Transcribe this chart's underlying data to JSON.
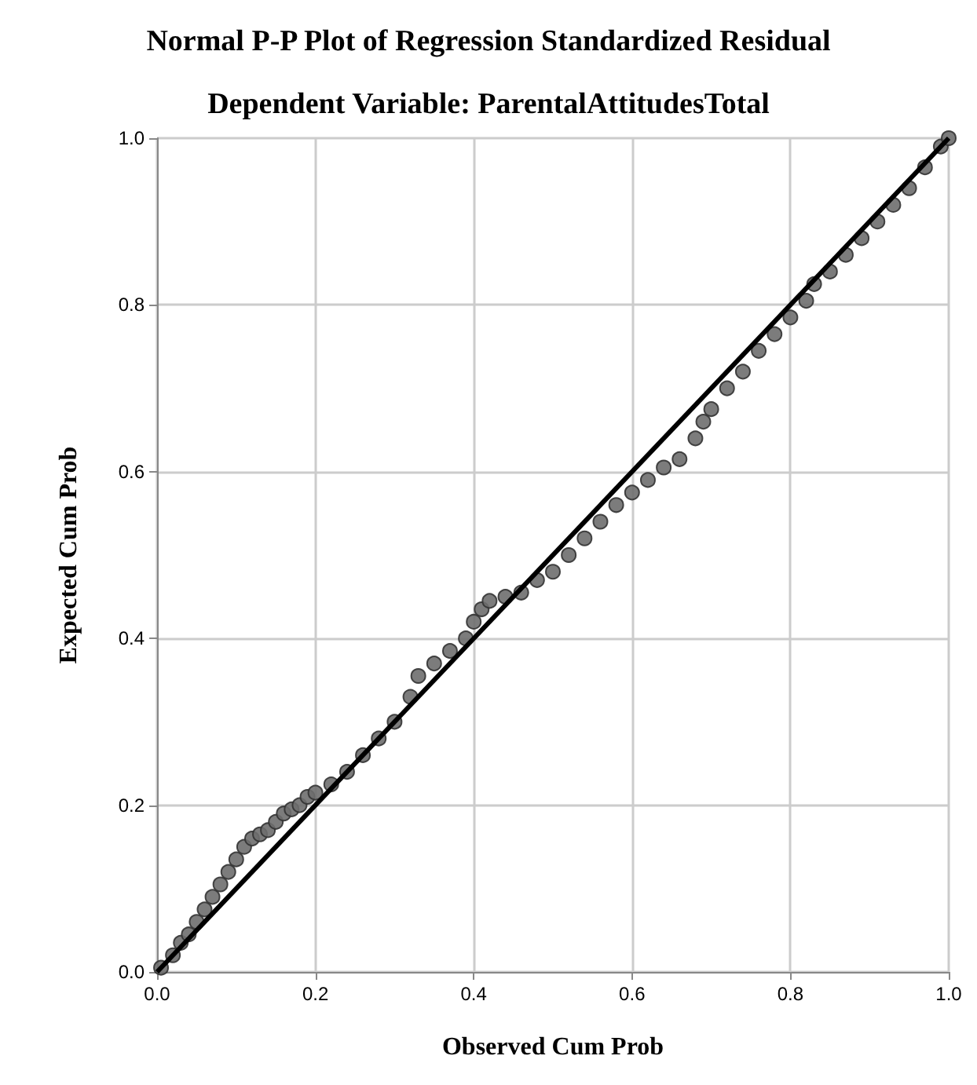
{
  "chart_data": {
    "type": "scatter",
    "title": "Normal P-P Plot of Regression Standardized Residual",
    "subtitle": "Dependent Variable: ParentalAttitudesTotal",
    "xlabel": "Observed Cum Prob",
    "ylabel": "Expected Cum Prob",
    "xlim": [
      0,
      1
    ],
    "ylim": [
      0,
      1
    ],
    "xticks": [
      {
        "value": 0,
        "label": "0.0"
      },
      {
        "value": 0.2,
        "label": "0.2"
      },
      {
        "value": 0.4,
        "label": "0.4"
      },
      {
        "value": 0.6,
        "label": "0.6"
      },
      {
        "value": 0.8,
        "label": "0.8"
      },
      {
        "value": 1,
        "label": "1.0"
      }
    ],
    "yticks": [
      {
        "value": 0,
        "label": "0.0"
      },
      {
        "value": 0.2,
        "label": "0.2"
      },
      {
        "value": 0.4,
        "label": "0.4"
      },
      {
        "value": 0.6,
        "label": "0.6"
      },
      {
        "value": 0.8,
        "label": "0.8"
      },
      {
        "value": 1,
        "label": "1.0"
      }
    ],
    "grid": true,
    "series": [
      {
        "marker": "circle",
        "color": "#6e6e6e",
        "x": [
          0.005,
          0.02,
          0.03,
          0.04,
          0.05,
          0.06,
          0.07,
          0.08,
          0.09,
          0.1,
          0.11,
          0.12,
          0.13,
          0.14,
          0.15,
          0.16,
          0.17,
          0.18,
          0.19,
          0.2,
          0.22,
          0.24,
          0.26,
          0.28,
          0.3,
          0.32,
          0.33,
          0.35,
          0.37,
          0.39,
          0.4,
          0.41,
          0.42,
          0.44,
          0.46,
          0.48,
          0.5,
          0.52,
          0.54,
          0.56,
          0.58,
          0.6,
          0.62,
          0.64,
          0.66,
          0.68,
          0.69,
          0.7,
          0.72,
          0.74,
          0.76,
          0.78,
          0.8,
          0.82,
          0.83,
          0.85,
          0.87,
          0.89,
          0.91,
          0.93,
          0.95,
          0.97,
          0.99,
          1.0
        ],
        "values": [
          0.005,
          0.02,
          0.035,
          0.045,
          0.06,
          0.075,
          0.09,
          0.105,
          0.12,
          0.135,
          0.15,
          0.16,
          0.165,
          0.17,
          0.18,
          0.19,
          0.195,
          0.2,
          0.21,
          0.215,
          0.225,
          0.24,
          0.26,
          0.28,
          0.3,
          0.33,
          0.355,
          0.37,
          0.385,
          0.4,
          0.42,
          0.435,
          0.445,
          0.45,
          0.455,
          0.47,
          0.48,
          0.5,
          0.52,
          0.54,
          0.56,
          0.575,
          0.59,
          0.605,
          0.615,
          0.64,
          0.66,
          0.675,
          0.7,
          0.72,
          0.745,
          0.765,
          0.785,
          0.805,
          0.825,
          0.84,
          0.86,
          0.88,
          0.9,
          0.92,
          0.94,
          0.965,
          0.99,
          1.0
        ]
      },
      {
        "type": "line",
        "marker": "none",
        "color": "#000000",
        "x": [
          0,
          1
        ],
        "values": [
          0,
          1
        ]
      }
    ]
  }
}
